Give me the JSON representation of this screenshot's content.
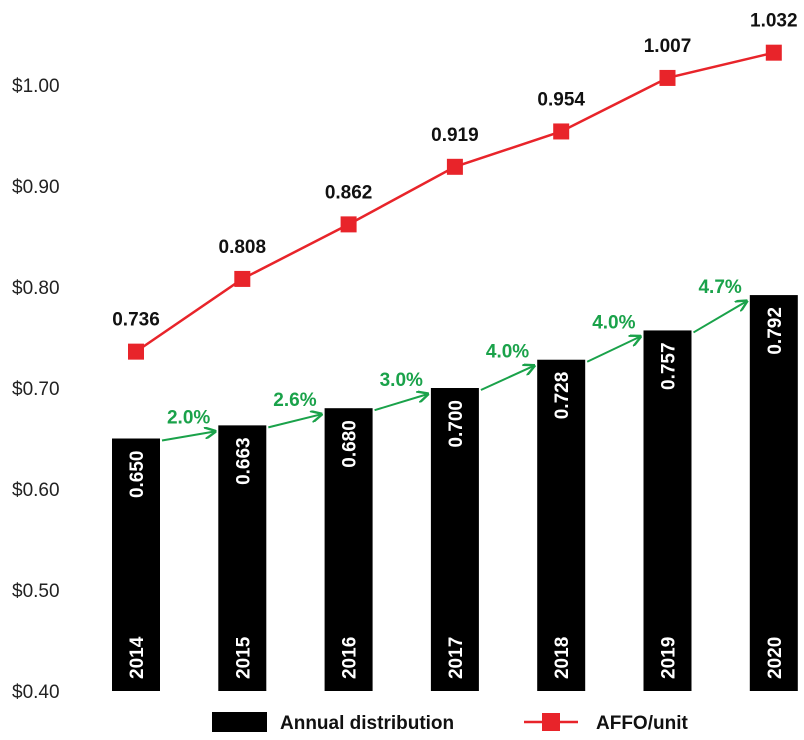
{
  "chart_data": {
    "type": "bar",
    "categories": [
      "2014",
      "2015",
      "2016",
      "2017",
      "2018",
      "2019",
      "2020"
    ],
    "y_ticks": [
      "$0.40",
      "$0.50",
      "$0.60",
      "$0.70",
      "$0.80",
      "$0.90",
      "$1.00"
    ],
    "ylim": [
      0.4,
      1.08
    ],
    "grid": false,
    "series": [
      {
        "name": "Annual distribution",
        "type": "bar",
        "color": "#000000",
        "values": [
          0.65,
          0.663,
          0.68,
          0.7,
          0.728,
          0.757,
          0.792
        ],
        "labels": [
          "0.650",
          "0.663",
          "0.680",
          "0.700",
          "0.728",
          "0.757",
          "0.792"
        ]
      },
      {
        "name": "AFFO/unit",
        "type": "line",
        "color": "#e8242a",
        "values": [
          0.736,
          0.808,
          0.862,
          0.919,
          0.954,
          1.007,
          1.032
        ],
        "labels": [
          "0.736",
          "0.808",
          "0.862",
          "0.919",
          "0.954",
          "1.007",
          "1.032"
        ]
      }
    ],
    "growth_annotations": {
      "color": "#1aa24a",
      "labels": [
        "2.0%",
        "2.6%",
        "3.0%",
        "4.0%",
        "4.0%",
        "4.7%"
      ]
    },
    "legend_position": "bottom"
  }
}
